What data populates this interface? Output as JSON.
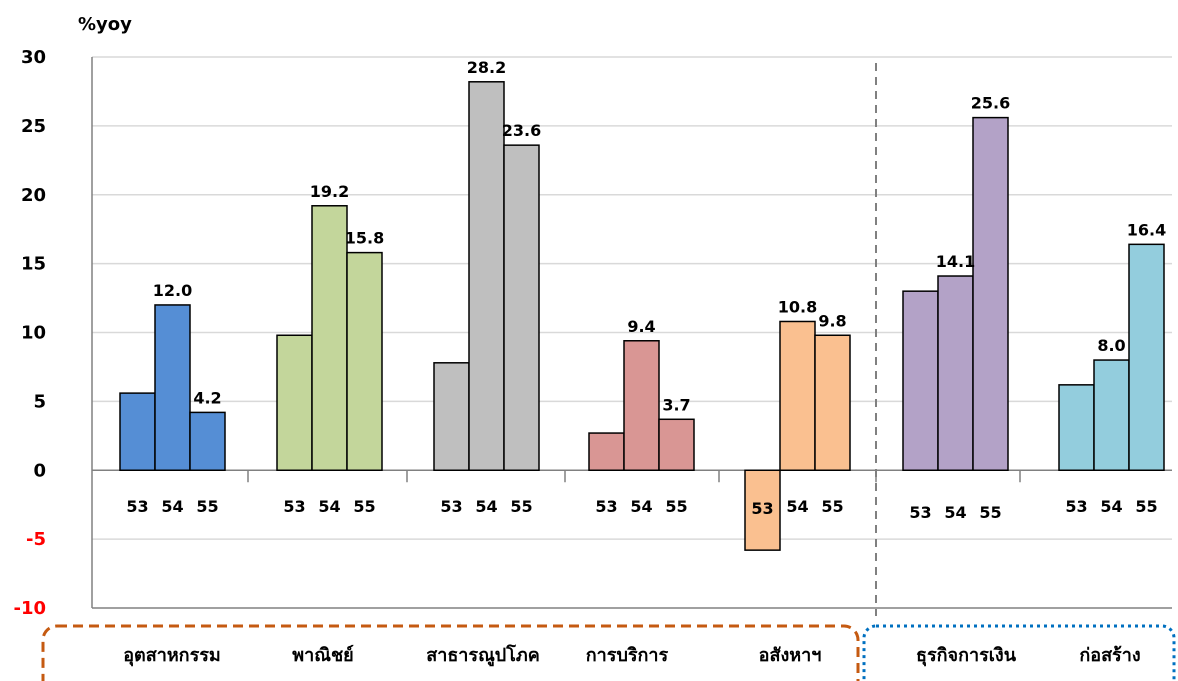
{
  "chart_data": {
    "type": "bar",
    "ylabel": "%yoy",
    "ylim": [
      -10,
      30
    ],
    "yticks": [
      30,
      25,
      20,
      15,
      10,
      5,
      0,
      -5,
      -10
    ],
    "grid": true,
    "sub_categories": [
      "53",
      "54",
      "55"
    ],
    "groups": [
      {
        "name": "อุตสาหกรรม",
        "color": "#558ED5",
        "values": [
          5.6,
          12.0,
          4.2
        ],
        "labels": [
          "",
          "12.0",
          "4.2"
        ]
      },
      {
        "name": "พาณิชย์",
        "color": "#C3D69B",
        "values": [
          9.8,
          19.2,
          15.8
        ],
        "labels": [
          "",
          "19.2",
          "15.8"
        ]
      },
      {
        "name": "สาธารณูปโภค",
        "color": "#BFBFBF",
        "values": [
          7.8,
          28.2,
          23.6
        ],
        "labels": [
          "",
          "28.2",
          "23.6"
        ]
      },
      {
        "name": "การบริการ",
        "color": "#D99694",
        "values": [
          2.7,
          9.4,
          3.7
        ],
        "labels": [
          "",
          "9.4",
          "3.7"
        ]
      },
      {
        "name": "อสังหาฯ",
        "color": "#FAC090",
        "values": [
          -5.8,
          10.8,
          9.8
        ],
        "labels": [
          "",
          "10.8",
          "9.8"
        ]
      },
      {
        "name": "ธุรกิจการเงิน",
        "color": "#B3A2C7",
        "values": [
          13.0,
          14.1,
          25.6
        ],
        "labels": [
          "",
          "14.1",
          "25.6"
        ]
      },
      {
        "name": "ก่อสร้าง",
        "color": "#93CDDD",
        "values": [
          6.2,
          8.0,
          16.4
        ],
        "labels": [
          "",
          "8.0",
          "16.4"
        ]
      }
    ],
    "colors": {
      "negative_tick": "#FF0000",
      "tick": "#000000",
      "grid": "#D9D9D9",
      "orange_box": "#C55A11",
      "blue_box": "#0070C0",
      "divider": "#808080"
    }
  }
}
